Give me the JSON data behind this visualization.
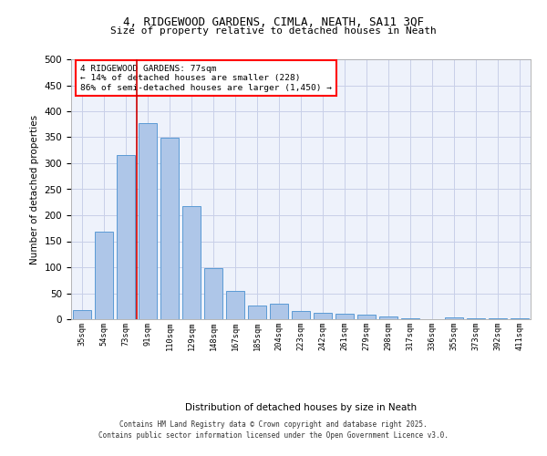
{
  "title1": "4, RIDGEWOOD GARDENS, CIMLA, NEATH, SA11 3QF",
  "title2": "Size of property relative to detached houses in Neath",
  "xlabel": "Distribution of detached houses by size in Neath",
  "ylabel": "Number of detached properties",
  "categories": [
    "35sqm",
    "54sqm",
    "73sqm",
    "91sqm",
    "110sqm",
    "129sqm",
    "148sqm",
    "167sqm",
    "185sqm",
    "204sqm",
    "223sqm",
    "242sqm",
    "261sqm",
    "279sqm",
    "298sqm",
    "317sqm",
    "336sqm",
    "355sqm",
    "373sqm",
    "392sqm",
    "411sqm"
  ],
  "values": [
    18,
    168,
    316,
    378,
    349,
    218,
    98,
    55,
    26,
    30,
    15,
    12,
    10,
    8,
    6,
    1,
    0,
    4,
    1,
    1,
    1
  ],
  "bar_color": "#aec6e8",
  "bar_edge_color": "#5b9bd5",
  "vline_color": "#cc0000",
  "vline_x": 2.5,
  "annotation_lines": [
    "4 RIDGEWOOD GARDENS: 77sqm",
    "← 14% of detached houses are smaller (228)",
    "86% of semi-detached houses are larger (1,450) →"
  ],
  "footer_line1": "Contains HM Land Registry data © Crown copyright and database right 2025.",
  "footer_line2": "Contains public sector information licensed under the Open Government Licence v3.0.",
  "ylim": [
    0,
    500
  ],
  "yticks": [
    0,
    50,
    100,
    150,
    200,
    250,
    300,
    350,
    400,
    450,
    500
  ],
  "bg_color": "#eef2fb",
  "grid_color": "#c8cfe8"
}
